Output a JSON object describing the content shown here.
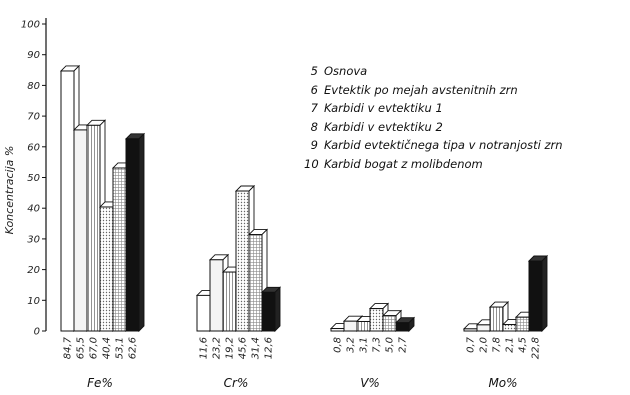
{
  "chart_data": {
    "type": "bar",
    "ylabel": "Koncentracija %",
    "ylim": [
      0,
      100
    ],
    "yticks": [
      0,
      10,
      20,
      30,
      40,
      50,
      60,
      70,
      80,
      90,
      100
    ],
    "categories": [
      "Fe%",
      "Cr%",
      "V%",
      "Mo%"
    ],
    "series": [
      {
        "name": "5 Osnova",
        "values": [
          84.7,
          11.6,
          0.8,
          0.7
        ],
        "labels": [
          "84,7",
          "11,6",
          "0,8",
          "0,7"
        ],
        "fill": "#ffffff"
      },
      {
        "name": "6 Evtektik po mejah avstenitnih zrn",
        "values": [
          65.5,
          23.2,
          3.2,
          2.0
        ],
        "labels": [
          "65,5",
          "23,2",
          "3,2",
          "2,0"
        ],
        "fill": "#f4f4f4"
      },
      {
        "name": "7 Karbidi v evtektiku 1",
        "values": [
          67.0,
          19.2,
          3.1,
          7.8
        ],
        "labels": [
          "67,0",
          "19,2",
          "3,1",
          "7,8"
        ],
        "fill": "#e6e6e6"
      },
      {
        "name": "8 Karbidi v evtektiku 2",
        "values": [
          40.4,
          45.6,
          7.3,
          2.1
        ],
        "labels": [
          "40,4",
          "45,6",
          "7,3",
          "2,1"
        ],
        "fill": "#d9d9d9"
      },
      {
        "name": "9 Karbid evtektičnega tipa v notranjosti zrn",
        "values": [
          53.1,
          31.4,
          5.0,
          4.5
        ],
        "labels": [
          "53,1",
          "31,4",
          "5,0",
          "4,5"
        ],
        "fill": "#cccccc"
      },
      {
        "name": "10 Karbid bogat z molibdenom",
        "values": [
          62.6,
          12.6,
          2.7,
          22.8
        ],
        "labels": [
          "62,6",
          "12,6",
          "2,7",
          "22,8"
        ],
        "fill": "#111111"
      }
    ],
    "grid": false,
    "legend_position": "upper-right"
  },
  "legend": [
    {
      "num": "5",
      "text": "Osnova"
    },
    {
      "num": "6",
      "text": "Evtektik po mejah avstenitnih zrn"
    },
    {
      "num": "7",
      "text": "Karbidi v evtektiku 1"
    },
    {
      "num": "8",
      "text": "Karbidi v evtektiku 2"
    },
    {
      "num": "9",
      "text": "Karbid evtektičnega tipa v notranjosti zrn"
    },
    {
      "num": "10",
      "text": "Karbid bogat z molibdenom"
    }
  ]
}
